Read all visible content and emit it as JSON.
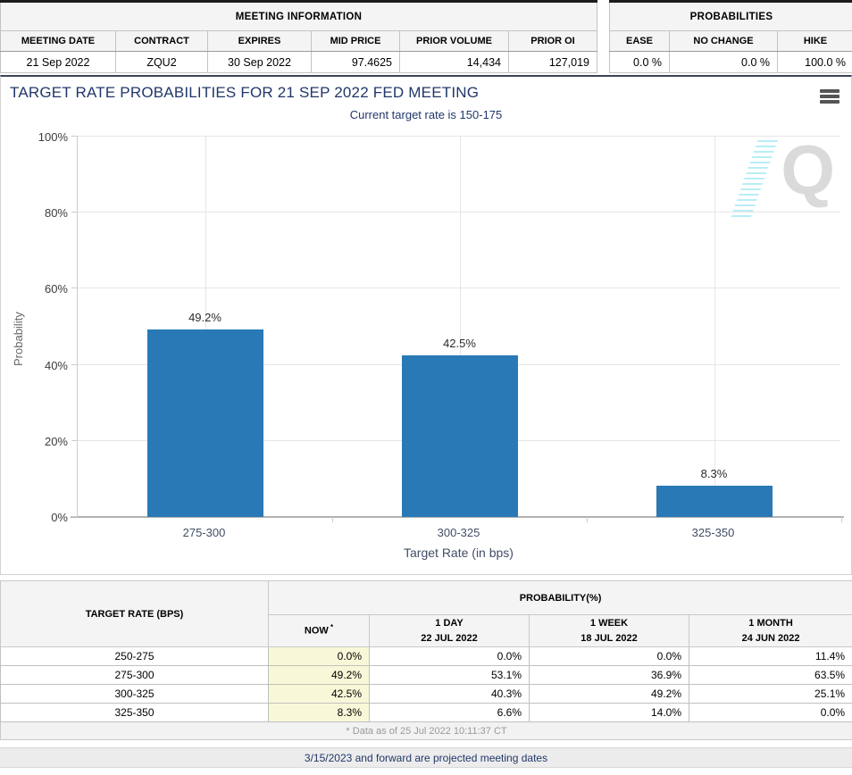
{
  "meeting_info": {
    "title": "MEETING INFORMATION",
    "columns": [
      "MEETING DATE",
      "CONTRACT",
      "EXPIRES",
      "MID PRICE",
      "PRIOR VOLUME",
      "PRIOR OI"
    ],
    "values": [
      "21 Sep 2022",
      "ZQU2",
      "30 Sep 2022",
      "97.4625",
      "14,434",
      "127,019"
    ]
  },
  "probabilities_summary": {
    "title": "PROBABILITIES",
    "columns": [
      "EASE",
      "NO CHANGE",
      "HIKE"
    ],
    "values": [
      "0.0 %",
      "0.0 %",
      "100.0 %"
    ]
  },
  "chart": {
    "title": "TARGET RATE PROBABILITIES FOR 21 SEP 2022 FED MEETING",
    "subtitle": "Current target rate is 150-175",
    "watermark_letter": "Q"
  },
  "chart_data": {
    "type": "bar",
    "categories": [
      "275-300",
      "300-325",
      "325-350"
    ],
    "values": [
      49.2,
      42.5,
      8.3
    ],
    "value_labels": [
      "49.2%",
      "42.5%",
      "8.3%"
    ],
    "title": "TARGET RATE PROBABILITIES FOR 21 SEP 2022 FED MEETING",
    "subtitle": "Current target rate is 150-175",
    "xlabel": "Target Rate (in bps)",
    "ylabel": "Probability",
    "ylim": [
      0,
      100
    ],
    "yticks": [
      {
        "value": 0,
        "label": "0%"
      },
      {
        "value": 20,
        "label": "20%"
      },
      {
        "value": 40,
        "label": "40%"
      },
      {
        "value": 60,
        "label": "60%"
      },
      {
        "value": 80,
        "label": "80%"
      },
      {
        "value": 100,
        "label": "100%"
      }
    ],
    "grid": true,
    "legend": "none",
    "bar_color": "#2879b5"
  },
  "history_table": {
    "col1_header": "TARGET RATE (BPS)",
    "group_header": "PROBABILITY(%)",
    "sub_headers": [
      {
        "line1": "NOW",
        "sup": "*",
        "line2": ""
      },
      {
        "line1": "1 DAY",
        "sup": "",
        "line2": "22 JUL 2022"
      },
      {
        "line1": "1 WEEK",
        "sup": "",
        "line2": "18 JUL 2022"
      },
      {
        "line1": "1 MONTH",
        "sup": "",
        "line2": "24 JUN 2022"
      }
    ],
    "rows": [
      {
        "rate": "250-275",
        "now": "0.0%",
        "day": "0.0%",
        "week": "0.0%",
        "month": "11.4%"
      },
      {
        "rate": "275-300",
        "now": "49.2%",
        "day": "53.1%",
        "week": "36.9%",
        "month": "63.5%"
      },
      {
        "rate": "300-325",
        "now": "42.5%",
        "day": "40.3%",
        "week": "49.2%",
        "month": "25.1%"
      },
      {
        "rate": "325-350",
        "now": "8.3%",
        "day": "6.6%",
        "week": "14.0%",
        "month": "0.0%"
      }
    ],
    "footnote": "* Data as of 25 Jul 2022 10:11:37 CT"
  },
  "footer_note": "3/15/2023 and forward are projected meeting dates",
  "colors": {
    "bar": "#2879b5",
    "title_navy": "#21376a",
    "now_column_bg": "#f8f8d8",
    "header_bg": "#f4f4f4"
  }
}
